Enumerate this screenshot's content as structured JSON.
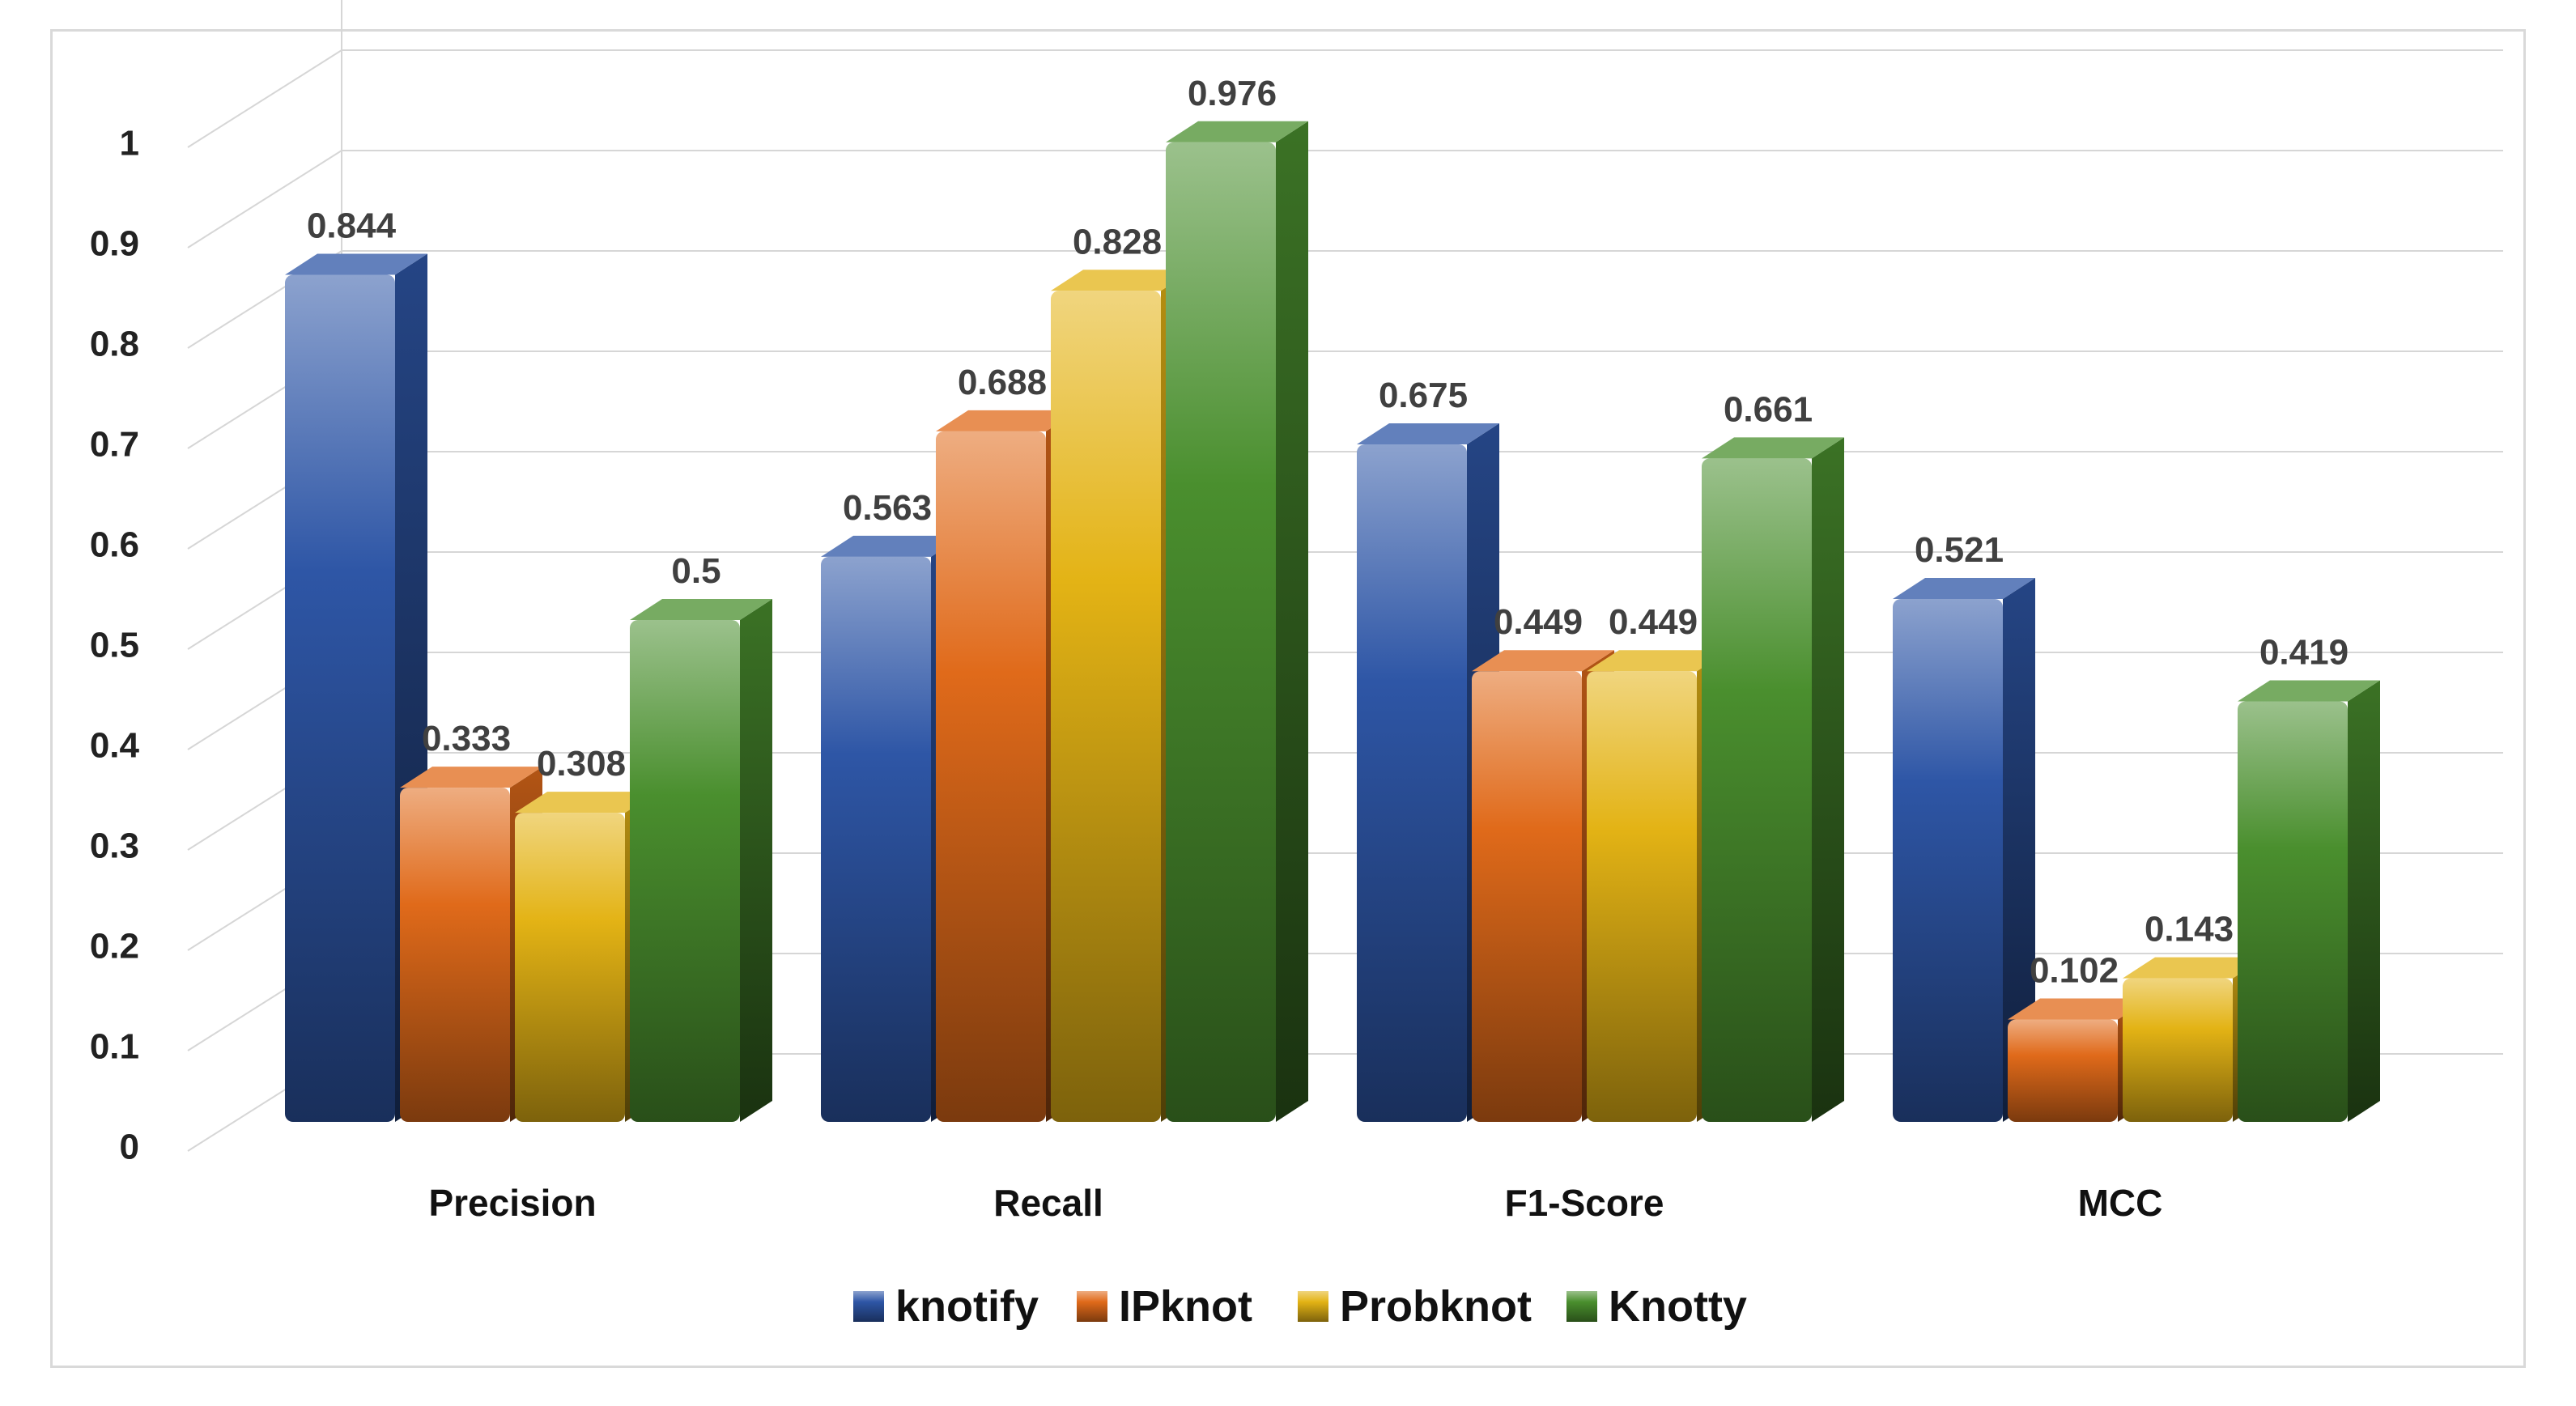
{
  "chart_data": {
    "type": "bar",
    "categories": [
      "Precision",
      "Recall",
      "F1-Score",
      "MCC"
    ],
    "series": [
      {
        "name": "knotify",
        "values": [
          0.844,
          0.563,
          0.675,
          0.521
        ],
        "color": "#2e56a6"
      },
      {
        "name": "IPknot",
        "values": [
          0.333,
          0.688,
          0.449,
          0.102
        ],
        "color": "#e06a1a"
      },
      {
        "name": "Probknot",
        "values": [
          0.308,
          0.828,
          0.449,
          0.143
        ],
        "color": "#e3b315"
      },
      {
        "name": "Knotty",
        "values": [
          0.5,
          0.976,
          0.661,
          0.419
        ],
        "color": "#4a8f2e"
      }
    ],
    "yticks": [
      "0",
      "0.1",
      "0.2",
      "0.3",
      "0.4",
      "0.5",
      "0.6",
      "0.7",
      "0.8",
      "0.9",
      "1"
    ],
    "ylim": [
      0,
      1.1
    ],
    "grid": true,
    "legend_position": "bottom",
    "style": "3d-cylinder-bars"
  }
}
